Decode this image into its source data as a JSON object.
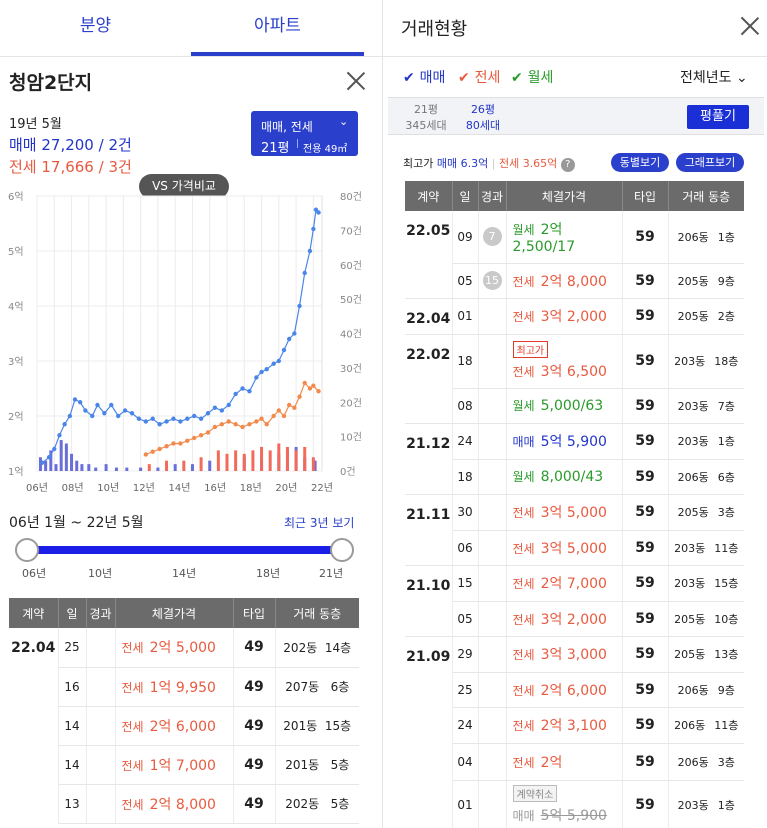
{
  "tabs": [
    {
      "label": "분양"
    },
    {
      "label": "아파트"
    }
  ],
  "apt": {
    "name": "청암2단지",
    "period": "19년 5월",
    "sale_summary": "매매 27,200 / 2건",
    "jeon_summary": "전세 17,666 / 3건"
  },
  "selector": {
    "type": "매매, 전세",
    "size": "21평",
    "area": "전용 49㎡"
  },
  "compare_btn": "VS 가격비교",
  "chart_data": {
    "type": "line",
    "title": "",
    "x_ticks": [
      "06년",
      "08년",
      "10년",
      "12년",
      "14년",
      "16년",
      "18년",
      "20년",
      "22년"
    ],
    "y_left_ticks": [
      "1억",
      "2억",
      "3억",
      "4억",
      "5억",
      "6억"
    ],
    "y_left_range": [
      1,
      6
    ],
    "y_right_ticks": [
      "0건",
      "10건",
      "20건",
      "30건",
      "40건",
      "50건",
      "60건",
      "70건",
      "80건"
    ],
    "y_right_range": [
      0,
      80
    ],
    "x_range": [
      2006,
      2022.5
    ],
    "grid": true,
    "series": [
      {
        "key": "sale",
        "color": "#4a86e8",
        "points": [
          [
            2006.3,
            1.15
          ],
          [
            2006.7,
            1.25
          ],
          [
            2007,
            1.4
          ],
          [
            2007.3,
            1.65
          ],
          [
            2007.6,
            1.85
          ],
          [
            2007.9,
            2.0
          ],
          [
            2008.2,
            2.3
          ],
          [
            2008.5,
            2.25
          ],
          [
            2008.8,
            2.1
          ],
          [
            2009.2,
            2.0
          ],
          [
            2009.5,
            2.2
          ],
          [
            2009.9,
            2.05
          ],
          [
            2010.3,
            2.2
          ],
          [
            2010.7,
            2.0
          ],
          [
            2011.1,
            2.1
          ],
          [
            2011.5,
            2.05
          ],
          [
            2011.9,
            1.95
          ],
          [
            2012.3,
            1.9
          ],
          [
            2012.7,
            1.95
          ],
          [
            2013.1,
            1.85
          ],
          [
            2013.5,
            1.9
          ],
          [
            2013.9,
            1.95
          ],
          [
            2014.3,
            1.9
          ],
          [
            2014.7,
            1.95
          ],
          [
            2015.1,
            2.0
          ],
          [
            2015.5,
            1.95
          ],
          [
            2015.9,
            2.05
          ],
          [
            2016.3,
            2.15
          ],
          [
            2016.7,
            2.1
          ],
          [
            2017.1,
            2.2
          ],
          [
            2017.5,
            2.4
          ],
          [
            2017.9,
            2.5
          ],
          [
            2018.3,
            2.45
          ],
          [
            2018.7,
            2.7
          ],
          [
            2019.0,
            2.8
          ],
          [
            2019.3,
            2.85
          ],
          [
            2019.7,
            2.95
          ],
          [
            2020.0,
            3.0
          ],
          [
            2020.3,
            3.2
          ],
          [
            2020.6,
            3.4
          ],
          [
            2020.9,
            3.5
          ],
          [
            2021.2,
            4.0
          ],
          [
            2021.5,
            4.6
          ],
          [
            2021.8,
            5.0
          ],
          [
            2022.0,
            5.4
          ],
          [
            2022.15,
            5.75
          ],
          [
            2022.3,
            5.7
          ]
        ]
      },
      {
        "key": "jeon",
        "color": "#f28a4c",
        "points": [
          [
            2012.3,
            1.3
          ],
          [
            2012.7,
            1.35
          ],
          [
            2013.1,
            1.4
          ],
          [
            2013.5,
            1.45
          ],
          [
            2013.9,
            1.5
          ],
          [
            2014.3,
            1.5
          ],
          [
            2014.7,
            1.55
          ],
          [
            2015.1,
            1.6
          ],
          [
            2015.5,
            1.65
          ],
          [
            2015.9,
            1.7
          ],
          [
            2016.3,
            1.8
          ],
          [
            2016.7,
            1.85
          ],
          [
            2017.1,
            1.9
          ],
          [
            2017.5,
            1.85
          ],
          [
            2017.9,
            1.8
          ],
          [
            2018.3,
            1.85
          ],
          [
            2018.7,
            1.9
          ],
          [
            2019.0,
            1.95
          ],
          [
            2019.3,
            1.85
          ],
          [
            2019.7,
            2.0
          ],
          [
            2020.0,
            2.1
          ],
          [
            2020.3,
            2.0
          ],
          [
            2020.6,
            2.2
          ],
          [
            2020.9,
            2.15
          ],
          [
            2021.2,
            2.35
          ],
          [
            2021.5,
            2.6
          ],
          [
            2021.8,
            2.5
          ],
          [
            2022.0,
            2.55
          ],
          [
            2022.3,
            2.45
          ]
        ]
      }
    ],
    "bars_sale": [
      [
        2006.2,
        4
      ],
      [
        2006.5,
        3
      ],
      [
        2006.8,
        6
      ],
      [
        2007.1,
        2
      ],
      [
        2007.4,
        9
      ],
      [
        2007.7,
        8
      ],
      [
        2008.0,
        5
      ],
      [
        2008.3,
        3
      ],
      [
        2008.6,
        2
      ],
      [
        2009.0,
        2
      ],
      [
        2009.4,
        1
      ],
      [
        2010.0,
        2
      ],
      [
        2010.6,
        1
      ],
      [
        2011.2,
        1
      ],
      [
        2012.0,
        1
      ],
      [
        2013.0,
        1
      ],
      [
        2014.0,
        2
      ],
      [
        2015.0,
        2
      ],
      [
        2016.0,
        3
      ],
      [
        2017.0,
        3
      ],
      [
        2018.0,
        4
      ],
      [
        2019.0,
        3
      ],
      [
        2020.0,
        5
      ],
      [
        2020.5,
        6
      ],
      [
        2021.0,
        7
      ],
      [
        2021.5,
        4
      ],
      [
        2022.1,
        3
      ]
    ],
    "bars_jeon": [
      [
        2012.5,
        2
      ],
      [
        2013.5,
        3
      ],
      [
        2014.5,
        3
      ],
      [
        2015.5,
        4
      ],
      [
        2016.5,
        6
      ],
      [
        2017.0,
        5
      ],
      [
        2017.5,
        6
      ],
      [
        2018.0,
        5
      ],
      [
        2018.5,
        6
      ],
      [
        2019.0,
        7
      ],
      [
        2019.5,
        6
      ],
      [
        2020.0,
        8
      ],
      [
        2020.5,
        7
      ],
      [
        2021.0,
        6
      ],
      [
        2021.5,
        7
      ],
      [
        2022.0,
        4
      ]
    ]
  },
  "range": {
    "label": "06년 1월 ~ 22년 5월",
    "recent_btn": "최근 3년 보기",
    "ticks": [
      "06년",
      "10년",
      "14년",
      "18년",
      "21년"
    ]
  },
  "ltable": {
    "headers": [
      "계약",
      "일",
      "경과",
      "체결가격",
      "타입",
      "거래 동층"
    ],
    "date": "22.04",
    "rows": [
      {
        "day": "25",
        "kind": "전세",
        "amt": "2억 5,000",
        "type": "49",
        "loc": "202동  14층"
      },
      {
        "day": "16",
        "kind": "전세",
        "amt": "1억 9,950",
        "type": "49",
        "loc": "207동   6층"
      },
      {
        "day": "14",
        "kind": "전세",
        "amt": "2억 6,000",
        "type": "49",
        "loc": "201동  15층"
      },
      {
        "day": "14",
        "kind": "전세",
        "amt": "1억 7,000",
        "type": "49",
        "loc": "201동   5층"
      },
      {
        "day": "13",
        "kind": "전세",
        "amt": "2억 8,000",
        "type": "49",
        "loc": "202동   5층"
      }
    ]
  },
  "right": {
    "title": "거래현황",
    "filters": [
      {
        "label": "매매",
        "color": "#2235c8"
      },
      {
        "label": "전세",
        "color": "#e85a3f"
      },
      {
        "label": "월세",
        "color": "#2a9a2a"
      }
    ],
    "year_select": "전체년도",
    "size_a": {
      "size": "21평",
      "units": "345세대"
    },
    "size_b": {
      "size": "26평",
      "units": "80세대"
    },
    "floorplan_btn": "평풀기",
    "max_label": "최고가",
    "max_sale": "매매 6.3억",
    "max_jeon": "전세 3.65억",
    "help": "?",
    "btn_building": "동별보기",
    "btn_graph": "그래프보기"
  },
  "rtable": {
    "headers": [
      "계약",
      "일",
      "경과",
      "체결가격",
      "타입",
      "거래 동층"
    ],
    "groups": [
      {
        "date": "22.05",
        "rows": [
          {
            "day": "09",
            "age": "7",
            "kind": "월세",
            "amt": "2억",
            "amt2": "2,500/17",
            "cls": "c-wol",
            "type": "59",
            "dong": "206동",
            "floor": "1층",
            "h": 52
          },
          {
            "day": "05",
            "age": "15",
            "kind": "전세",
            "amt": "2억 8,000",
            "cls": "c-jeon",
            "type": "59",
            "dong": "205동",
            "floor": "9층",
            "h": 35
          }
        ]
      },
      {
        "date": "22.04",
        "rows": [
          {
            "day": "01",
            "kind": "전세",
            "amt": "3억 2,000",
            "cls": "c-jeon",
            "type": "59",
            "dong": "205동",
            "floor": "2층",
            "h": 36
          }
        ]
      },
      {
        "date": "22.02",
        "rows": [
          {
            "day": "18",
            "tag": "최고가",
            "tagcls": "c-jeon",
            "kind": "전세",
            "amt": "3억 6,500",
            "cls": "c-jeon",
            "type": "59",
            "dong": "203동",
            "floor": "18층",
            "h": 54
          },
          {
            "day": "08",
            "kind": "월세",
            "amt": "5,000/63",
            "cls": "c-wol",
            "type": "59",
            "dong": "203동",
            "floor": "7층",
            "h": 35
          }
        ]
      },
      {
        "date": "21.12",
        "rows": [
          {
            "day": "24",
            "kind": "매매",
            "amt": "5억 5,900",
            "cls": "c-sale",
            "type": "59",
            "dong": "203동",
            "floor": "1층",
            "h": 36
          },
          {
            "day": "18",
            "kind": "월세",
            "amt": "8,000/43",
            "cls": "c-wol",
            "type": "59",
            "dong": "206동",
            "floor": "6층",
            "h": 35
          }
        ]
      },
      {
        "date": "21.11",
        "rows": [
          {
            "day": "30",
            "kind": "전세",
            "amt": "3억 5,000",
            "cls": "c-jeon",
            "type": "59",
            "dong": "205동",
            "floor": "3층",
            "h": 36
          },
          {
            "day": "06",
            "kind": "전세",
            "amt": "3억 5,000",
            "cls": "c-jeon",
            "type": "59",
            "dong": "203동",
            "floor": "11층",
            "h": 35
          }
        ]
      },
      {
        "date": "21.10",
        "rows": [
          {
            "day": "15",
            "kind": "전세",
            "amt": "2억 7,000",
            "cls": "c-jeon",
            "type": "59",
            "dong": "203동",
            "floor": "15층",
            "h": 36
          },
          {
            "day": "05",
            "kind": "전세",
            "amt": "3억 2,000",
            "cls": "c-jeon",
            "type": "59",
            "dong": "205동",
            "floor": "10층",
            "h": 35
          }
        ]
      },
      {
        "date": "21.09",
        "rows": [
          {
            "day": "29",
            "kind": "전세",
            "amt": "3억 3,000",
            "cls": "c-jeon",
            "type": "59",
            "dong": "205동",
            "floor": "13층",
            "h": 36
          },
          {
            "day": "25",
            "kind": "전세",
            "amt": "2억 6,000",
            "cls": "c-jeon",
            "type": "59",
            "dong": "206동",
            "floor": "9층",
            "h": 35
          },
          {
            "day": "24",
            "kind": "전세",
            "amt": "2억 3,100",
            "cls": "c-jeon",
            "type": "59",
            "dong": "206동",
            "floor": "11층",
            "h": 36
          },
          {
            "day": "04",
            "kind": "전세",
            "amt": "2억",
            "cls": "c-jeon",
            "type": "59",
            "dong": "206동",
            "floor": "3층",
            "h": 37
          },
          {
            "day": "01",
            "tag": "계약취소",
            "tagcls": "cancel",
            "kind": "매매",
            "amt": "5억 5,900",
            "cls": "c-sale",
            "type": "59",
            "dong": "203동",
            "floor": "1층",
            "h": 50
          }
        ]
      }
    ]
  }
}
